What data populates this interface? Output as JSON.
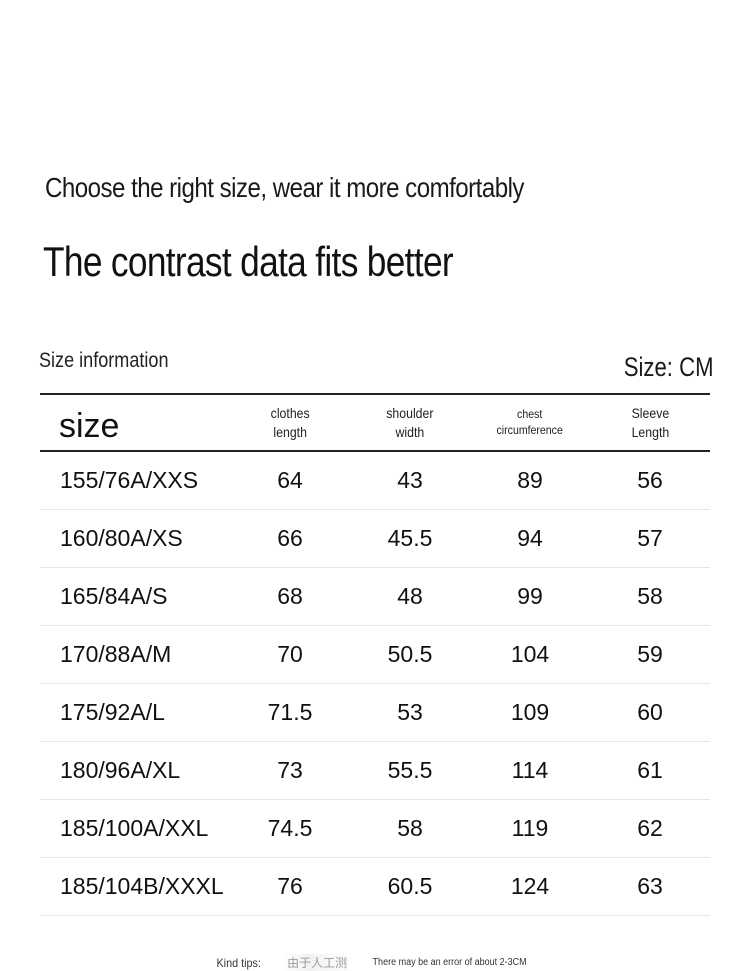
{
  "headline": {
    "line1": "Choose the right size, wear it more comfortably",
    "line2": "The contrast data fits better"
  },
  "size_info_label": "Size information",
  "unit_label": "Size: CM",
  "table": {
    "headers": [
      "size",
      "clothes\nlength",
      "shoulder\nwidth",
      "chest\ncircumference",
      "Sleeve\nLength"
    ],
    "rows": [
      [
        "155/76A/XXS",
        "64",
        "43",
        "89",
        "56"
      ],
      [
        "160/80A/XS",
        "66",
        "45.5",
        "94",
        "57"
      ],
      [
        "165/84A/S",
        "68",
        "48",
        "99",
        "58"
      ],
      [
        "170/88A/M",
        "70",
        "50.5",
        "104",
        "59"
      ],
      [
        "175/92A/L",
        "71.5",
        "53",
        "109",
        "60"
      ],
      [
        "180/96A/XL",
        "73",
        "55.5",
        "114",
        "61"
      ],
      [
        "185/100A/XXL",
        "74.5",
        "58",
        "119",
        "62"
      ],
      [
        "185/104B/XXXL",
        "76",
        "60.5",
        "124",
        "63"
      ]
    ]
  },
  "tips": {
    "prefix": "Kind tips:",
    "chinese_text": "由于人工测",
    "note": "There may be an error of about 2-3CM"
  }
}
